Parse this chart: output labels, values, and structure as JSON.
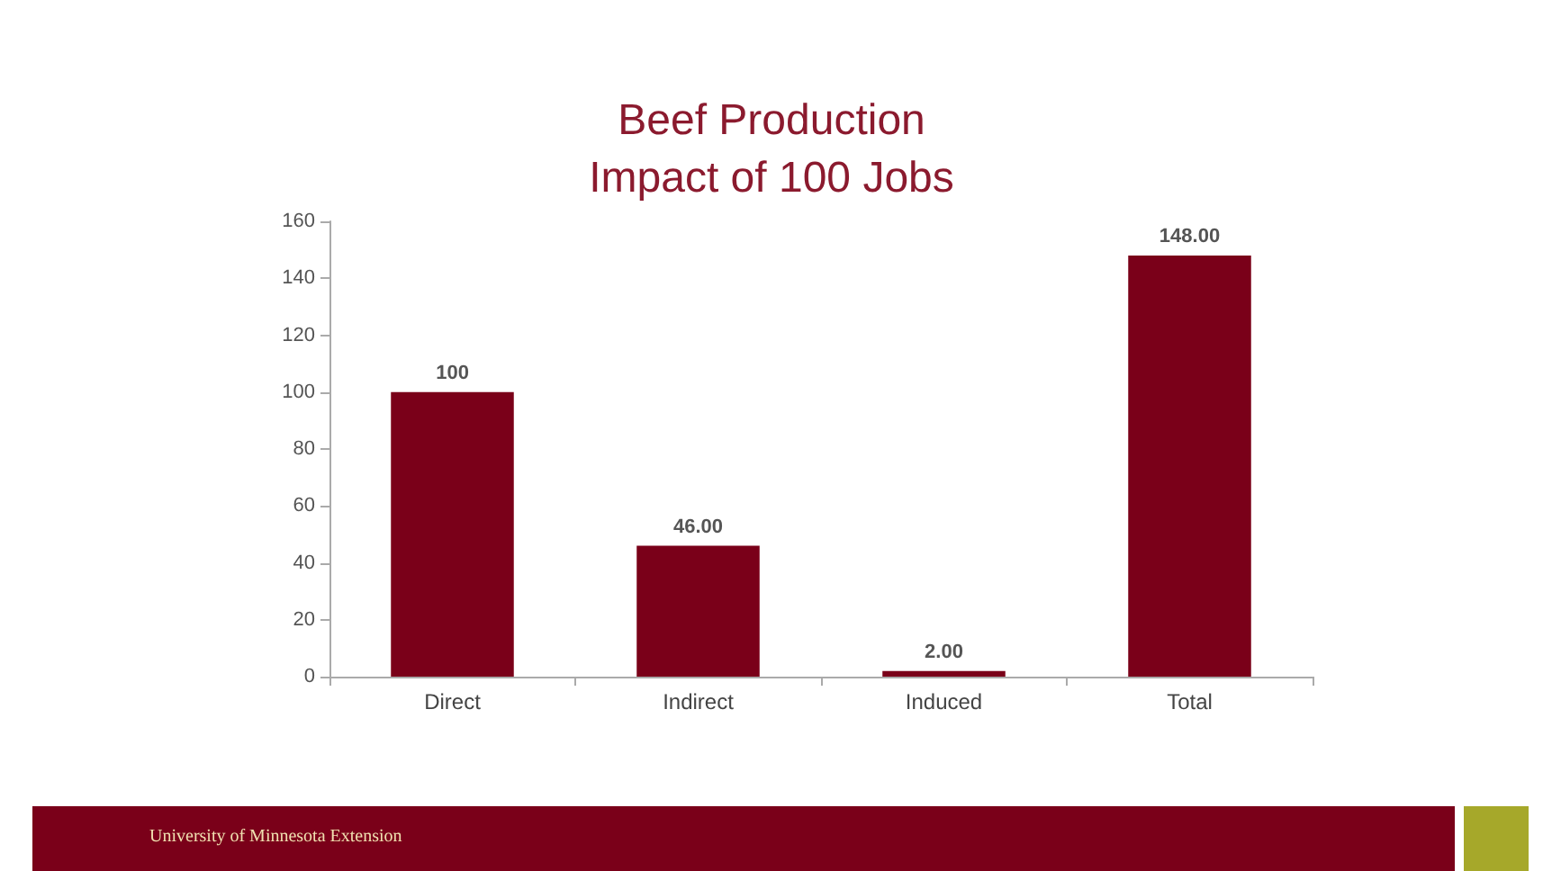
{
  "chart_data": {
    "type": "bar",
    "title": "Beef Production\nImpact of 100 Jobs",
    "categories": [
      "Direct",
      "Indirect",
      "Induced",
      "Total"
    ],
    "values": [
      100,
      46,
      2,
      148
    ],
    "value_labels": [
      "100",
      "46.00",
      "2.00",
      "148.00"
    ],
    "color": "#7a0019",
    "ylim": [
      0,
      160
    ],
    "yticks": [
      0,
      20,
      40,
      60,
      80,
      100,
      120,
      140,
      160
    ],
    "grid": false,
    "annotations": [
      "University of Minnesota Extension"
    ]
  }
}
